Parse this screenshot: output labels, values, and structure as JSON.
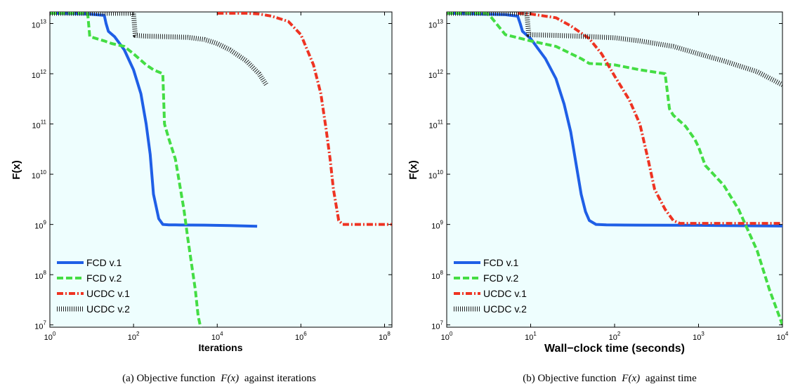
{
  "chart_data": [
    {
      "type": "line",
      "caption_prefix": "(a) Objective function",
      "caption_math": "F(x)",
      "caption_suffix": "against iterations",
      "xlabel": "Iterations",
      "ylabel": "F(x)",
      "xscale": "log",
      "yscale": "log",
      "xlim": [
        1,
        150000000
      ],
      "ylim": [
        9000000,
        17000000000000
      ],
      "xticks": [
        1,
        100,
        10000,
        1000000,
        100000000
      ],
      "xtick_base": [
        "10",
        "10",
        "10",
        "10",
        "10"
      ],
      "xtick_exp": [
        "0",
        "2",
        "4",
        "6",
        "8"
      ],
      "yticks": [
        10000000,
        100000000,
        1000000000,
        10000000000,
        100000000000,
        1000000000000,
        10000000000000
      ],
      "ytick_base": [
        "10",
        "10",
        "10",
        "10",
        "10",
        "10",
        "10"
      ],
      "ytick_exp": [
        "7",
        "8",
        "9",
        "10",
        "11",
        "12",
        "13"
      ],
      "background": "#eefefe",
      "legend_position": "bottom-left",
      "series": [
        {
          "name": "FCD v.1",
          "color": "#1f5fe6",
          "style": "solid",
          "x": [
            1,
            8,
            20,
            22,
            25,
            35,
            60,
            100,
            150,
            200,
            250,
            300,
            400,
            500,
            700,
            1000,
            5000,
            20000,
            90000
          ],
          "y": [
            16000000000000,
            15500000000000,
            14500000000000,
            10000000000000,
            7000000000000,
            5500000000000,
            3000000000000,
            1200000000000,
            400000000000,
            100000000000,
            25000000000,
            4000000000,
            1300000000,
            1000000000,
            980000000,
            980000000,
            970000000,
            950000000,
            920000000
          ]
        },
        {
          "name": "FCD v.2",
          "color": "#44dd44",
          "style": "dashed",
          "x": [
            1,
            8,
            9,
            20,
            30,
            60,
            100,
            200,
            300,
            500,
            550,
            700,
            1000,
            1600,
            2000,
            3000,
            3500,
            4000
          ],
          "y": [
            16000000000000,
            16000000000000,
            5500000000000,
            4500000000000,
            4000000000000,
            3500000000000,
            2500000000000,
            1500000000000,
            1200000000000,
            1000000000000,
            100000000000,
            50000000000,
            20000000000,
            2000000000,
            500000000,
            50000000,
            15000000,
            9000000
          ]
        },
        {
          "name": "UCDC v.1",
          "color": "#ee3322",
          "style": "dashdot",
          "x": [
            10000,
            50000,
            100000,
            200000,
            500000,
            1000000,
            2000000,
            3000000,
            4000000,
            5000000,
            6000000,
            8000000,
            10000000,
            150000000
          ],
          "y": [
            16000000000000,
            16000000000000,
            15500000000000,
            14000000000000,
            11000000000000,
            6000000000000,
            1500000000000,
            400000000000,
            80000000000,
            20000000000,
            5000000000,
            1200000000,
            1000000000,
            1000000000
          ]
        },
        {
          "name": "UCDC v.2",
          "color": "#222222",
          "style": "hatched",
          "x": [
            1,
            100,
            110,
            200,
            500,
            1000,
            2000,
            5000,
            10000,
            20000,
            50000,
            100000,
            150000
          ],
          "y": [
            16000000000000,
            16000000000000,
            5800000000000,
            5600000000000,
            5500000000000,
            5400000000000,
            5300000000000,
            4800000000000,
            4000000000000,
            3000000000000,
            1800000000000,
            1000000000000,
            600000000000
          ]
        }
      ]
    },
    {
      "type": "line",
      "caption_prefix": "(b) Objective function",
      "caption_math": "F(x)",
      "caption_suffix": "against time",
      "xlabel": "Wall−clock time (seconds)",
      "ylabel": "F(x)",
      "xscale": "log",
      "yscale": "log",
      "xlim": [
        1,
        10000
      ],
      "ylim": [
        9000000,
        17000000000000
      ],
      "xticks": [
        1,
        10,
        100,
        1000,
        10000
      ],
      "xtick_base": [
        "10",
        "10",
        "10",
        "10",
        "10"
      ],
      "xtick_exp": [
        "0",
        "1",
        "2",
        "3",
        "4"
      ],
      "yticks": [
        10000000,
        100000000,
        1000000000,
        10000000000,
        100000000000,
        1000000000000,
        10000000000000
      ],
      "ytick_base": [
        "10",
        "10",
        "10",
        "10",
        "10",
        "10",
        "10"
      ],
      "ytick_exp": [
        "7",
        "8",
        "9",
        "10",
        "11",
        "12",
        "13"
      ],
      "background": "#eefefe",
      "legend_position": "bottom-left",
      "series": [
        {
          "name": "FCD v.1",
          "color": "#1f5fe6",
          "style": "solid",
          "x": [
            1,
            5,
            7,
            7.5,
            8,
            10,
            15,
            20,
            25,
            30,
            35,
            40,
            45,
            50,
            60,
            80,
            200,
            1000,
            10000
          ],
          "y": [
            16000000000000,
            15000000000000,
            14000000000000,
            10000000000000,
            7000000000000,
            5000000000000,
            2000000000000,
            800000000000,
            250000000000,
            70000000000,
            15000000000,
            4000000000,
            1800000000,
            1200000000,
            1000000000,
            980000000,
            970000000,
            960000000,
            930000000
          ]
        },
        {
          "name": "FCD v.2",
          "color": "#44dd44",
          "style": "dashed",
          "x": [
            1,
            3,
            3.3,
            5,
            10,
            20,
            40,
            50,
            100,
            200,
            400,
            450,
            500,
            700,
            900,
            1000,
            1200,
            2000,
            3000,
            5000,
            7000,
            10000
          ],
          "y": [
            16000000000000,
            16000000000000,
            14000000000000,
            6000000000000,
            4500000000000,
            3500000000000,
            2000000000000,
            1600000000000,
            1500000000000,
            1200000000000,
            1000000000000,
            200000000000,
            150000000000,
            90000000000,
            50000000000,
            35000000000,
            15000000000,
            6000000000,
            2000000000,
            300000000,
            50000000,
            10000000
          ]
        },
        {
          "name": "UCDC v.1",
          "color": "#ee3322",
          "style": "dashdot",
          "x": [
            7,
            10,
            20,
            30,
            50,
            70,
            100,
            150,
            200,
            250,
            300,
            400,
            500,
            600,
            10000
          ],
          "y": [
            16000000000000,
            15500000000000,
            13000000000000,
            9000000000000,
            5000000000000,
            2500000000000,
            900000000000,
            300000000000,
            100000000000,
            20000000000,
            5000000000,
            2000000000,
            1200000000,
            1050000000,
            1050000000
          ]
        },
        {
          "name": "UCDC v.2",
          "color": "#222222",
          "style": "hatched",
          "x": [
            1,
            9,
            9.5,
            20,
            50,
            100,
            200,
            500,
            1000,
            2000,
            5000,
            10000
          ],
          "y": [
            16000000000000,
            16000000000000,
            6000000000000,
            5800000000000,
            5500000000000,
            5200000000000,
            4500000000000,
            3500000000000,
            2500000000000,
            1800000000000,
            1100000000000,
            600000000000
          ]
        }
      ]
    }
  ]
}
